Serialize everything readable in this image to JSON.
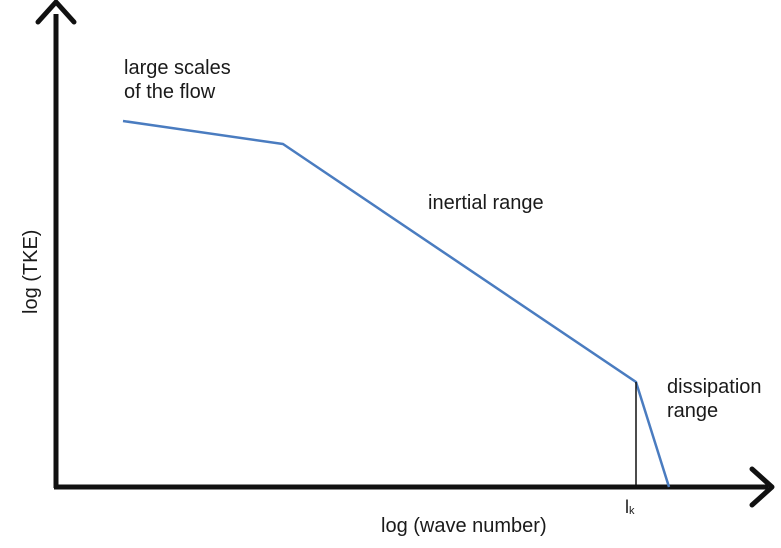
{
  "labels": {
    "large_scales_line1": "large scales",
    "large_scales_line2": "of the flow",
    "inertial": "inertial range",
    "dissipation_line1": "dissipation",
    "dissipation_line2": "range",
    "x_axis": "log (wave number)",
    "y_axis": "log (TKE)",
    "tick_main": "l",
    "tick_sub": "k"
  },
  "colors": {
    "axis": "#111111",
    "curve": "#4a7cc0",
    "marker": "#111111"
  }
}
